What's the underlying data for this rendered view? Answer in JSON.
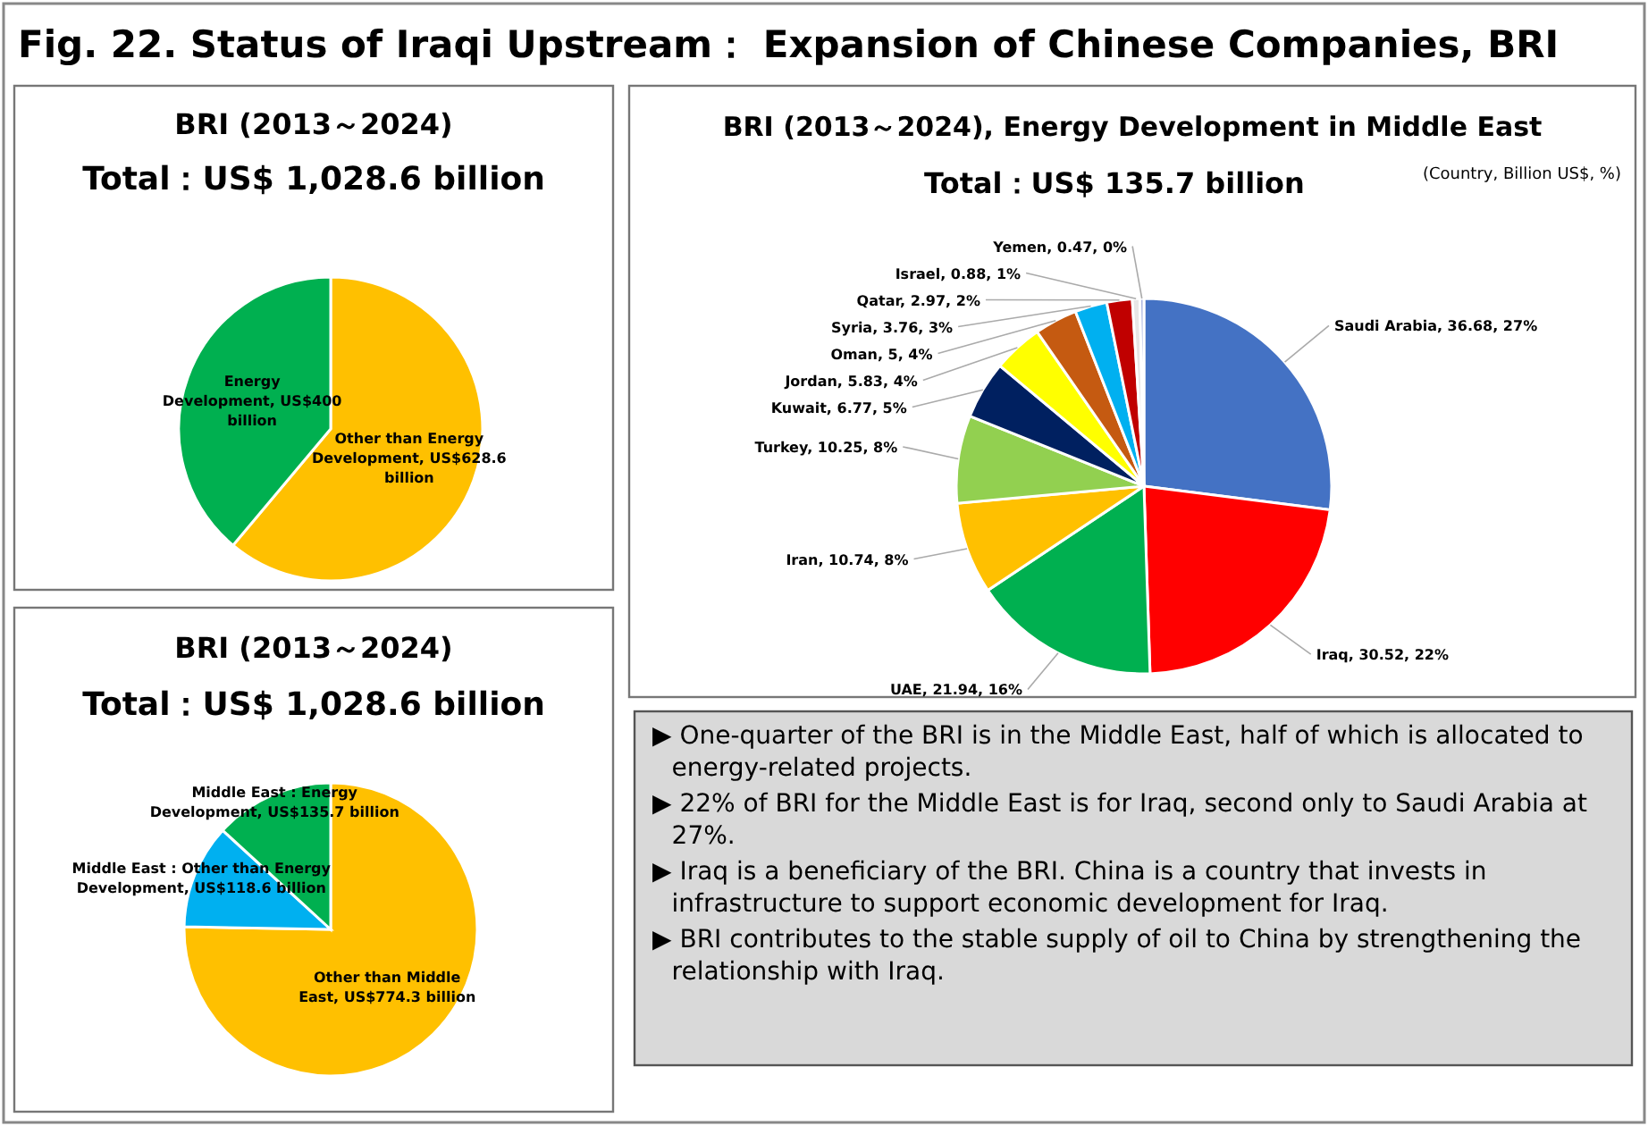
{
  "chart_data": [
    {
      "type": "other",
      "title": "Fig. 22.  Status of Iraqi Upstream：  Expansion of Chinese Companies, BRI"
    },
    {
      "type": "pie",
      "title": "BRI (2013～2024)",
      "subtitle": "Total：US$ 1,028.6 billion",
      "categories": [
        "Other than Energy Development",
        "Energy Development"
      ],
      "values": [
        61.11,
        38.89
      ],
      "value_labels": [
        "US$628.6 billion",
        "US$400 billion"
      ],
      "colors": [
        "#ffc000",
        "#00b050"
      ]
    },
    {
      "type": "pie",
      "title": "BRI (2013～2024), Energy Development in Middle East",
      "subtitle": "Total：US$ 135.7 billion",
      "annotations": [
        "(Country, Billion US$, %)"
      ],
      "categories": [
        "Saudi Arabia",
        "Iraq",
        "UAE",
        "Iran",
        "Turkey",
        "Kuwait",
        "Jordan",
        "Oman",
        "Syria",
        "Qatar",
        "Israel",
        "Yemen"
      ],
      "values": [
        36.68,
        30.52,
        21.94,
        10.74,
        10.25,
        6.77,
        5.83,
        5,
        3.76,
        2.97,
        0.88,
        0.47
      ],
      "value_labels": [
        "36.68, 27%",
        "30.52, 22%",
        "21.94, 16%",
        "10.74, 8%",
        "10.25, 8%",
        "6.77, 5%",
        "5.83, 4%",
        "5, 4%",
        "3.76, 3%",
        "2.97, 2%",
        "0.88, 1%",
        "0.47, 0%"
      ],
      "colors": [
        "#4472c4",
        "#ff0000",
        "#00b050",
        "#ffc000",
        "#92d050",
        "#002060",
        "#ffff00",
        "#c55a11",
        "#00b0f0",
        "#c00000",
        "#e7e6e6",
        "#a9b4e0"
      ]
    },
    {
      "type": "pie",
      "title": "BRI (2013～2024)",
      "subtitle": "Total：US$ 1,028.6 billion",
      "categories": [
        "Other than Middle East",
        "Middle East : Other than Energy Development",
        "Middle East : Energy Development"
      ],
      "values": [
        75.28,
        11.53,
        13.19
      ],
      "value_labels": [
        "US$774.3 billion",
        "US$118.6 billion",
        "US$135.7 billion"
      ],
      "colors": [
        "#ffc000",
        "#00b0f0",
        "#00b050"
      ]
    },
    {
      "type": "other",
      "annotations": [
        "▶ One-quarter of the BRI is in the Middle East, half of which is allocated to energy-related projects.",
        "▶ 22% of BRI for the Middle East is for Iraq, second only to Saudi Arabia at 27%.",
        "▶ Iraq is a beneficiary of the BRI. China is a country that invests in infrastructure to support economic development for Iraq.",
        "▶ BRI contributes to the stable supply of oil to China by strengthening the relationship with Iraq."
      ]
    }
  ]
}
